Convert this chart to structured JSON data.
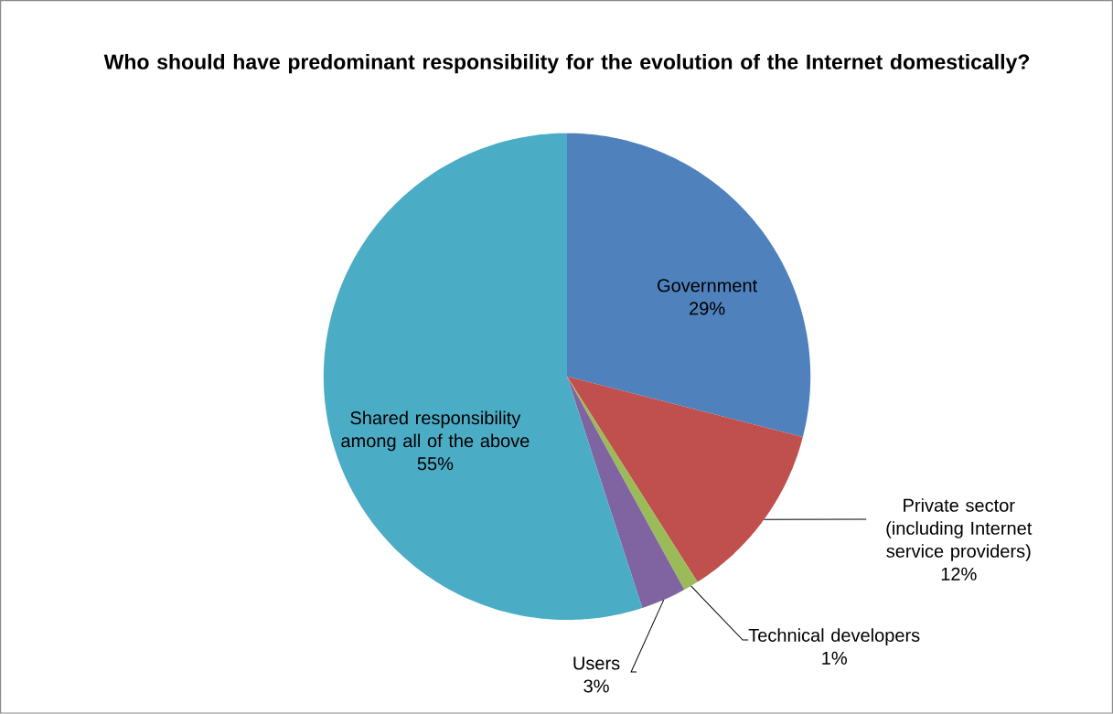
{
  "chart_data": {
    "type": "pie",
    "title": "Who should have predominant responsibility for the evolution of the Internet domestically?",
    "categories": [
      "Government",
      "Private sector (including Internet service providers)",
      "Technical developers",
      "Users",
      "Shared responsibility among all of the above"
    ],
    "values": [
      29,
      12,
      1,
      3,
      55
    ],
    "value_labels": [
      "29%",
      "12%",
      "1%",
      "3%",
      "55%"
    ],
    "colors": [
      "#4f81bd",
      "#c0504d",
      "#9bbb59",
      "#8064a2",
      "#4bacc6"
    ]
  }
}
